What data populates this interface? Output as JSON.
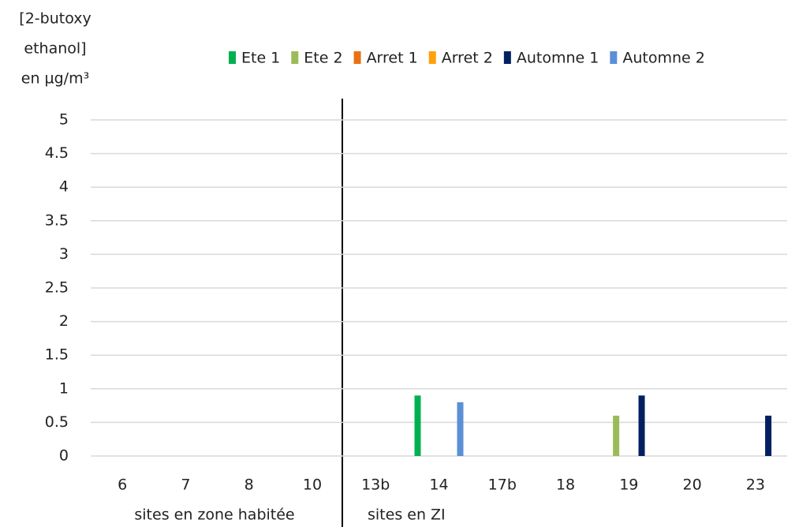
{
  "chart_data": {
    "type": "bar",
    "y_label_lines": [
      "[2-butoxy",
      "ethanol]",
      "en µg/m³"
    ],
    "categories": [
      "6",
      "7",
      "8",
      "10",
      "13b",
      "14",
      "17b",
      "18",
      "19",
      "20",
      "23"
    ],
    "group_labels": [
      "sites en zone habitée",
      "sites en ZI"
    ],
    "series": [
      {
        "name": "Ete 1",
        "color": "#00b050",
        "values": [
          null,
          null,
          null,
          null,
          null,
          0.9,
          null,
          null,
          null,
          null,
          null
        ]
      },
      {
        "name": "Ete 2",
        "color": "#9bbb59",
        "values": [
          null,
          null,
          null,
          null,
          null,
          null,
          null,
          null,
          0.6,
          null,
          null
        ]
      },
      {
        "name": "Arret 1",
        "color": "#e97112",
        "values": [
          null,
          null,
          null,
          null,
          null,
          null,
          null,
          null,
          null,
          null,
          null
        ]
      },
      {
        "name": "Arret 2",
        "color": "#ffa10a",
        "values": [
          null,
          null,
          null,
          null,
          null,
          null,
          null,
          null,
          null,
          null,
          null
        ]
      },
      {
        "name": "Automne 1",
        "color": "#002060",
        "values": [
          null,
          null,
          null,
          null,
          null,
          null,
          null,
          null,
          0.9,
          null,
          0.6
        ]
      },
      {
        "name": "Automne 2",
        "color": "#5b8fd6",
        "values": [
          null,
          null,
          null,
          null,
          null,
          0.8,
          null,
          null,
          null,
          null,
          null
        ]
      }
    ],
    "ylim": [
      0,
      5
    ],
    "yticks": [
      0,
      0.5,
      1,
      1.5,
      2,
      2.5,
      3,
      3.5,
      4,
      4.5,
      5
    ],
    "grid": true
  }
}
